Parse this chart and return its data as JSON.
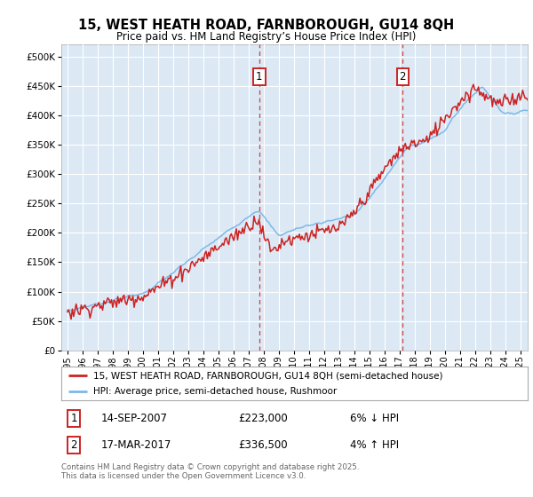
{
  "title": "15, WEST HEATH ROAD, FARNBOROUGH, GU14 8QH",
  "subtitle": "Price paid vs. HM Land Registry’s House Price Index (HPI)",
  "legend_line1": "15, WEST HEATH ROAD, FARNBOROUGH, GU14 8QH (semi-detached house)",
  "legend_line2": "HPI: Average price, semi-detached house, Rushmoor",
  "annotation1_date": "14-SEP-2007",
  "annotation1_price": "£223,000",
  "annotation1_hpi": "6% ↓ HPI",
  "annotation2_date": "17-MAR-2017",
  "annotation2_price": "£336,500",
  "annotation2_hpi": "4% ↑ HPI",
  "footer": "Contains HM Land Registry data © Crown copyright and database right 2025.\nThis data is licensed under the Open Government Licence v3.0.",
  "outer_bg_color": "#ffffff",
  "plot_bg_color": "#dce9f5",
  "hpi_line_color": "#7db8e8",
  "price_line_color": "#cc2222",
  "t1_x": 2007.72,
  "t2_x": 2017.22,
  "t1_y": 223000,
  "t2_y": 336500,
  "ylim": [
    0,
    520000
  ],
  "xlim_start": 1994.6,
  "xlim_end": 2025.5
}
